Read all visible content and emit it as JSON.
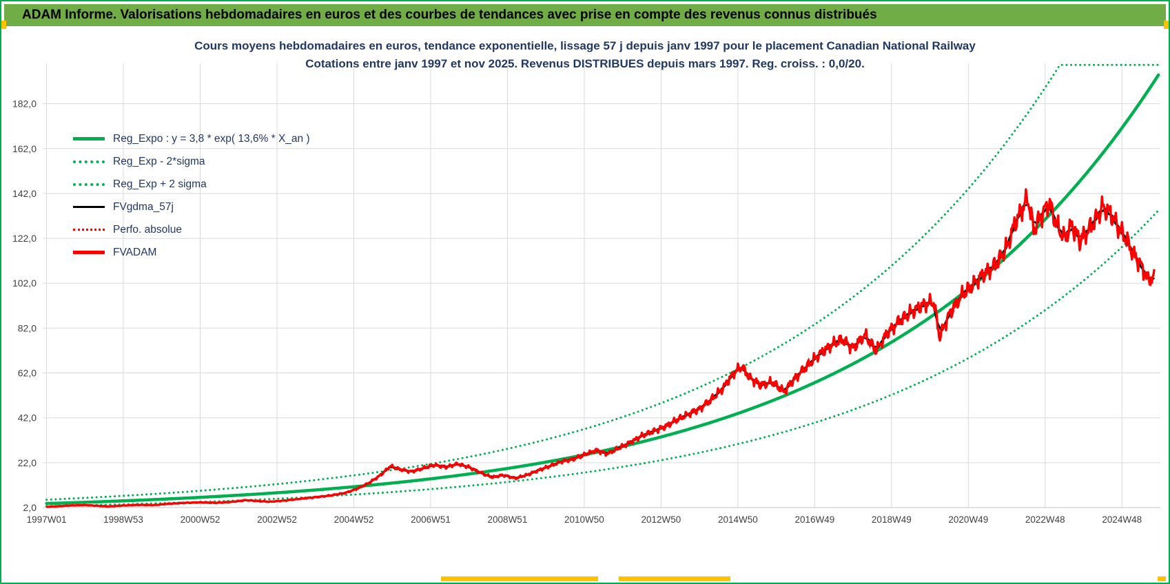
{
  "header": {
    "title": "ADAM Informe. Valorisations hebdomadaires en euros et des courbes de tendances avec prise en compte des revenus connus distribués"
  },
  "colors": {
    "header_bg": "#70AD47",
    "accent_yellow": "#FFC000",
    "trend_green": "#00B050",
    "series_red": "#FF0000",
    "series_black": "#000000",
    "gridline": "#d9d9d9",
    "title_navy": "#203864"
  },
  "chart_data": {
    "type": "line",
    "title": "Cours moyens hebdomadaires en euros, tendance exponentielle, lissage 57 j depuis janv 1997  pour le placement Canadian National Railway",
    "subtitle": "Cotations entre janv 1997 et nov 2025. Revenus DISTRIBUES depuis mars 1997.  Reg. croiss. : 0,0/20.",
    "legend_position": "top-left",
    "grid": true,
    "x_axis": {
      "min_year": 1996.9,
      "max_year": 2026.0,
      "ticks": [
        {
          "label": "1997W01",
          "year": 1997.0
        },
        {
          "label": "1998W53",
          "year": 1999.0
        },
        {
          "label": "2000W52",
          "year": 2001.0
        },
        {
          "label": "2002W52",
          "year": 2003.0
        },
        {
          "label": "2004W52",
          "year": 2005.0
        },
        {
          "label": "2006W51",
          "year": 2007.0
        },
        {
          "label": "2008W51",
          "year": 2009.0
        },
        {
          "label": "2010W50",
          "year": 2011.0
        },
        {
          "label": "2012W50",
          "year": 2013.0
        },
        {
          "label": "2014W50",
          "year": 2015.0
        },
        {
          "label": "2016W49",
          "year": 2017.0
        },
        {
          "label": "2018W49",
          "year": 2019.0
        },
        {
          "label": "2020W49",
          "year": 2021.0
        },
        {
          "label": "2022W48",
          "year": 2023.0
        },
        {
          "label": "2024W48",
          "year": 2025.0
        }
      ]
    },
    "y_axis": {
      "min": 2,
      "max": 200,
      "ticks": [
        {
          "label": "2,0",
          "value": 2
        },
        {
          "label": "22,0",
          "value": 22
        },
        {
          "label": "42,0",
          "value": 42
        },
        {
          "label": "62,0",
          "value": 62
        },
        {
          "label": "82,0",
          "value": 82
        },
        {
          "label": "102,0",
          "value": 102
        },
        {
          "label": "122,0",
          "value": 122
        },
        {
          "label": "142,0",
          "value": 142
        },
        {
          "label": "162,0",
          "value": 162
        },
        {
          "label": "182,0",
          "value": 182
        }
      ]
    },
    "regression": {
      "formula_text": "y = 3,8 * exp( 13,6% *  X_an )",
      "a": 3.8,
      "rate": 0.136,
      "start_year": 1997,
      "sigma_plus_factor": 1.45,
      "sigma_minus_factor": 0.69,
      "clip_max": 199.3
    },
    "legend": [
      {
        "label": "Reg_Expo : y = 3,8 * exp( 13,6% *  X_an )",
        "color": "#00B050",
        "style": "solid",
        "weight": 5
      },
      {
        "label": "Reg_Exp - 2*sigma",
        "color": "#00B050",
        "style": "dotted",
        "weight": 4
      },
      {
        "label": "Reg_Exp + 2 sigma",
        "color": "#00B050",
        "style": "dotted",
        "weight": 4
      },
      {
        "label": "FVgdma_57j",
        "color": "#000000",
        "style": "solid",
        "weight": 3
      },
      {
        "label": "Perfo. absolue",
        "color": "#FF0000",
        "style": "dotted",
        "weight": 3
      },
      {
        "label": "FVADAM",
        "color": "#FF0000",
        "style": "solid",
        "weight": 5
      }
    ],
    "series": [
      {
        "name": "FVADAM",
        "color": "#FF0000",
        "end_year": 2025.85,
        "points": [
          [
            1997.0,
            2.3
          ],
          [
            1997.3,
            2.6
          ],
          [
            1997.6,
            2.9
          ],
          [
            1998.0,
            3.1
          ],
          [
            1998.3,
            2.8
          ],
          [
            1998.6,
            2.5
          ],
          [
            1999.0,
            2.9
          ],
          [
            1999.4,
            3.2
          ],
          [
            1999.8,
            3.1
          ],
          [
            2000.2,
            3.7
          ],
          [
            2000.6,
            4.1
          ],
          [
            2001.0,
            4.3
          ],
          [
            2001.4,
            4.1
          ],
          [
            2001.8,
            4.5
          ],
          [
            2002.2,
            5.3
          ],
          [
            2002.5,
            4.9
          ],
          [
            2002.8,
            4.6
          ],
          [
            2003.2,
            5.1
          ],
          [
            2003.6,
            5.9
          ],
          [
            2004.0,
            6.6
          ],
          [
            2004.4,
            7.4
          ],
          [
            2004.8,
            8.6
          ],
          [
            2005.1,
            10.5
          ],
          [
            2005.4,
            13.0
          ],
          [
            2005.7,
            16.5
          ],
          [
            2005.95,
            20.5
          ],
          [
            2006.2,
            19.0
          ],
          [
            2006.5,
            18.0
          ],
          [
            2006.8,
            19.5
          ],
          [
            2007.1,
            21.0
          ],
          [
            2007.4,
            20.0
          ],
          [
            2007.7,
            21.5
          ],
          [
            2008.0,
            20.0
          ],
          [
            2008.3,
            17.5
          ],
          [
            2008.6,
            15.5
          ],
          [
            2008.9,
            16.5
          ],
          [
            2009.2,
            15.0
          ],
          [
            2009.5,
            16.5
          ],
          [
            2009.8,
            18.5
          ],
          [
            2010.1,
            20.5
          ],
          [
            2010.4,
            22.5
          ],
          [
            2010.7,
            23.5
          ],
          [
            2011.0,
            25.5
          ],
          [
            2011.3,
            27.5
          ],
          [
            2011.6,
            26.0
          ],
          [
            2011.9,
            28.5
          ],
          [
            2012.2,
            31.0
          ],
          [
            2012.5,
            34.0
          ],
          [
            2012.8,
            36.0
          ],
          [
            2013.1,
            38.0
          ],
          [
            2013.4,
            41.0
          ],
          [
            2013.7,
            43.5
          ],
          [
            2014.0,
            46.0
          ],
          [
            2014.3,
            50.0
          ],
          [
            2014.6,
            55.0
          ],
          [
            2014.9,
            62.0
          ],
          [
            2015.1,
            65.0
          ],
          [
            2015.3,
            60.0
          ],
          [
            2015.6,
            56.5
          ],
          [
            2015.9,
            58.0
          ],
          [
            2016.2,
            53.5
          ],
          [
            2016.5,
            60.0
          ],
          [
            2016.8,
            65.0
          ],
          [
            2017.1,
            70.0
          ],
          [
            2017.4,
            74.0
          ],
          [
            2017.7,
            77.0
          ],
          [
            2018.0,
            73.0
          ],
          [
            2018.3,
            79.0
          ],
          [
            2018.6,
            72.0
          ],
          [
            2018.9,
            80.0
          ],
          [
            2019.2,
            85.0
          ],
          [
            2019.5,
            89.0
          ],
          [
            2019.8,
            92.0
          ],
          [
            2020.1,
            94.0
          ],
          [
            2020.25,
            78.0
          ],
          [
            2020.5,
            88.0
          ],
          [
            2020.8,
            96.0
          ],
          [
            2021.1,
            101.0
          ],
          [
            2021.4,
            106.0
          ],
          [
            2021.7,
            110.0
          ],
          [
            2022.0,
            118.0
          ],
          [
            2022.2,
            128.0
          ],
          [
            2022.4,
            135.0
          ],
          [
            2022.55,
            140.0
          ],
          [
            2022.7,
            126.0
          ],
          [
            2022.9,
            132.0
          ],
          [
            2023.1,
            138.0
          ],
          [
            2023.3,
            128.0
          ],
          [
            2023.5,
            122.0
          ],
          [
            2023.7,
            128.0
          ],
          [
            2023.9,
            121.0
          ],
          [
            2024.1,
            125.0
          ],
          [
            2024.3,
            130.0
          ],
          [
            2024.5,
            136.0
          ],
          [
            2024.7,
            133.0
          ],
          [
            2024.9,
            127.0
          ],
          [
            2025.1,
            122.0
          ],
          [
            2025.3,
            115.0
          ],
          [
            2025.5,
            110.0
          ],
          [
            2025.65,
            104.0
          ],
          [
            2025.85,
            104.0
          ]
        ]
      }
    ]
  }
}
